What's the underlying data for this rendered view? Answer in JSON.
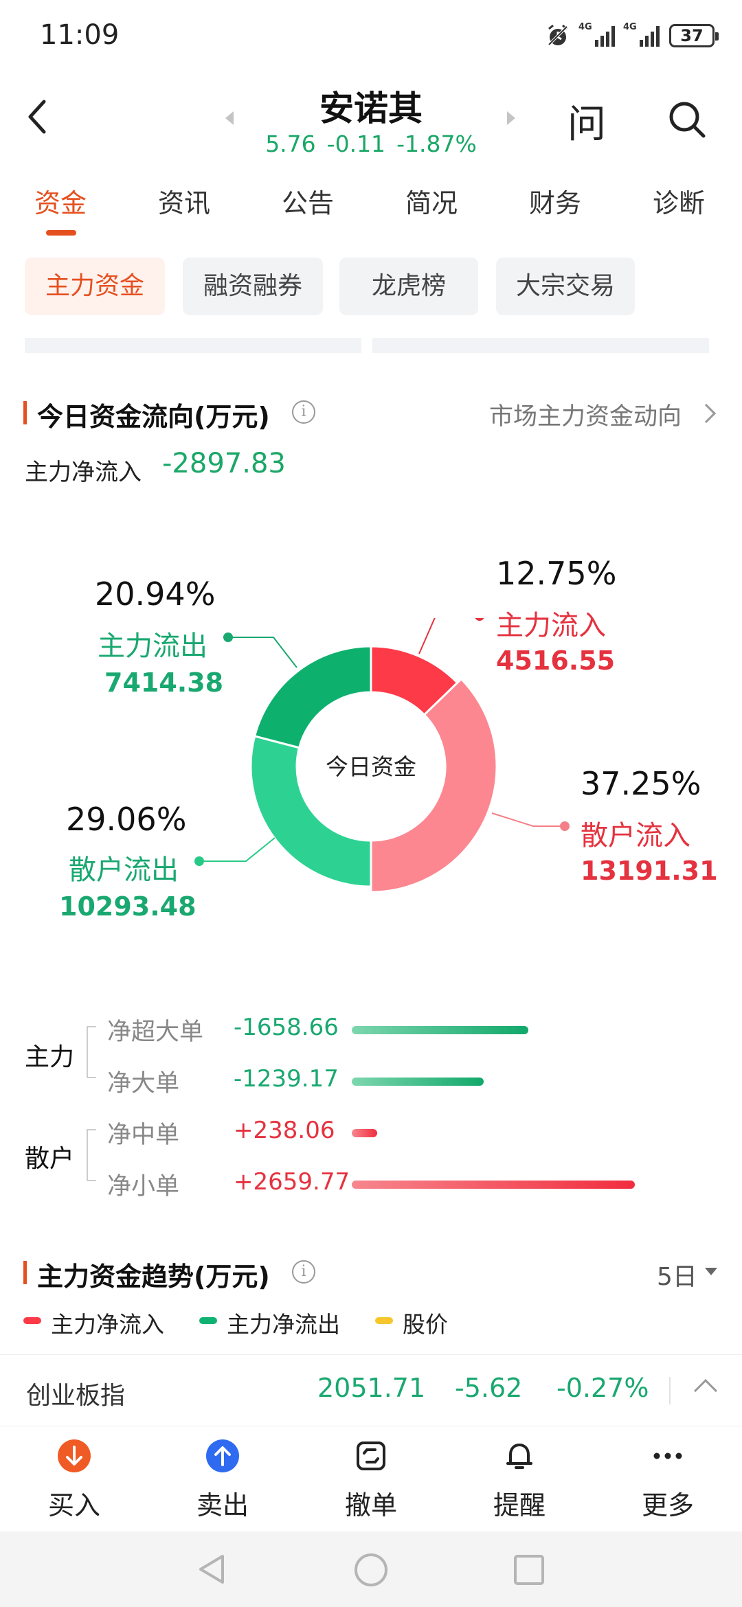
{
  "status": {
    "time": "11:09",
    "network1": "4G",
    "network2": "4G",
    "battery": "37"
  },
  "header": {
    "stock_name": "安诺其",
    "price": "5.76",
    "change": "-0.11",
    "change_pct": "-1.87%",
    "ask_label": "问"
  },
  "tabs": [
    "资金",
    "资讯",
    "公告",
    "简况",
    "财务",
    "诊断"
  ],
  "sub_tabs": [
    "主力资金",
    "融资融券",
    "龙虎榜",
    "大宗交易"
  ],
  "flow": {
    "title": "今日资金流向(万元)",
    "market_link": "市场主力资金动向",
    "net_label": "主力净流入",
    "net_value": "-2897.83",
    "center_label": "今日资金"
  },
  "chart_data": {
    "type": "pie",
    "title": "今日资金",
    "slices": [
      {
        "name": "主力流入",
        "pct": "12.75%",
        "value": "4516.55",
        "share": 12.75,
        "color": "#fc3a48"
      },
      {
        "name": "散户流入",
        "pct": "37.25%",
        "value": "13191.31",
        "share": 37.25,
        "color": "#fc8790"
      },
      {
        "name": "散户流出",
        "pct": "29.06%",
        "value": "10293.48",
        "share": 29.06,
        "color": "#2dd293"
      },
      {
        "name": "主力流出",
        "pct": "20.94%",
        "value": "7414.38",
        "share": 20.94,
        "color": "#0db16d"
      }
    ]
  },
  "orders": {
    "main_label": "主力",
    "retail_label": "散户",
    "rows": [
      {
        "label": "净超大单",
        "value": "-1658.66",
        "amount": -1658.66,
        "color": "#19a870"
      },
      {
        "label": "净大单",
        "value": "-1239.17",
        "amount": -1239.17,
        "color": "#19a870"
      },
      {
        "label": "净中单",
        "value": "+238.06",
        "amount": 238.06,
        "color": "#e5323f"
      },
      {
        "label": "净小单",
        "value": "+2659.77",
        "amount": 2659.77,
        "color": "#e5323f"
      }
    ]
  },
  "trend": {
    "title": "主力资金趋势(万元)",
    "period": "5日",
    "legend": [
      "主力净流入",
      "主力净流出",
      "股价"
    ],
    "legend_colors": [
      "#fc3a48",
      "#10b272",
      "#f7c62c"
    ]
  },
  "index": {
    "name": "创业板指",
    "value": "2051.71",
    "change": "-5.62",
    "change_pct": "-0.27%"
  },
  "bottom": [
    "买入",
    "卖出",
    "撤单",
    "提醒",
    "更多"
  ]
}
